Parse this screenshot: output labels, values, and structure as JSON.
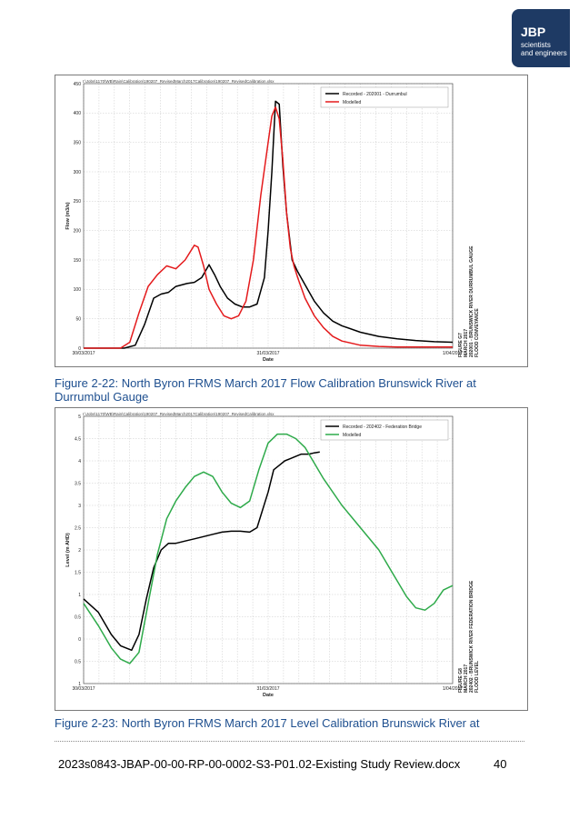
{
  "logo": {
    "brand": "JBP",
    "line1": "scientists",
    "line2": "and engineers",
    "color": "#1e3a64"
  },
  "figures": [
    {
      "caption": "Figure 2-22: North Byron FRMS March 2017 Flow Calibration Brunswick River at Durrumbul Gauge",
      "file_path": "I:\\Jobs\\1170\\WB\\Rain\\Calibration\\190207_RevisedMarch2017Calibration\\190207_RevisedCalibration.xlsx",
      "side_label": "FIGURE G7\nMARCH 2017\n202001 - BRUNSWICK RIVER DURRUMBUL GAUGE\nFLOOD CONVEYANCE",
      "chart_data": {
        "type": "line",
        "xlabel": "Date",
        "ylabel": "Flow (m3/s)",
        "x_ticks": [
          "30/03/2017",
          "31/03/2017",
          "1/04/2017"
        ],
        "ylim": [
          0,
          450
        ],
        "y_ticks": [
          0,
          50,
          100,
          150,
          200,
          250,
          300,
          350,
          400,
          450
        ],
        "grid": true,
        "legend_position": "top-right",
        "x_unit": "days from 30/03/2017",
        "series": [
          {
            "name": "Recorded - 202001 - Durrumbul",
            "color": "#000000",
            "x": [
              0,
              0.22,
              0.28,
              0.33,
              0.38,
              0.42,
              0.46,
              0.5,
              0.56,
              0.6,
              0.64,
              0.68,
              0.71,
              0.74,
              0.78,
              0.82,
              0.86,
              0.9,
              0.94,
              0.98,
              1.0,
              1.02,
              1.04,
              1.06,
              1.08,
              1.1,
              1.13,
              1.16,
              1.2,
              1.25,
              1.3,
              1.35,
              1.4,
              1.5,
              1.6,
              1.7,
              1.8,
              1.9,
              2.0
            ],
            "y": [
              0,
              0,
              5,
              40,
              85,
              92,
              95,
              105,
              110,
              112,
              120,
              142,
              125,
              105,
              85,
              75,
              70,
              70,
              75,
              120,
              200,
              300,
              420,
              415,
              310,
              230,
              150,
              130,
              108,
              80,
              60,
              46,
              38,
              27,
              20,
              16,
              13,
              11,
              10
            ]
          },
          {
            "name": "Modelled",
            "color": "#e41a1c",
            "x": [
              0,
              0.2,
              0.25,
              0.3,
              0.35,
              0.4,
              0.45,
              0.5,
              0.55,
              0.6,
              0.62,
              0.65,
              0.68,
              0.72,
              0.76,
              0.8,
              0.84,
              0.88,
              0.92,
              0.96,
              1.0,
              1.02,
              1.04,
              1.06,
              1.08,
              1.1,
              1.12,
              1.14,
              1.16,
              1.2,
              1.25,
              1.3,
              1.35,
              1.4,
              1.5,
              1.6,
              1.7,
              2.0
            ],
            "y": [
              0,
              0,
              10,
              60,
              105,
              125,
              140,
              135,
              150,
              175,
              172,
              140,
              100,
              75,
              55,
              50,
              55,
              80,
              150,
              260,
              350,
              395,
              410,
              390,
              320,
              230,
              170,
              140,
              120,
              85,
              55,
              35,
              20,
              12,
              5,
              3,
              2,
              2
            ]
          }
        ]
      }
    },
    {
      "caption": "Figure 2-23: North Byron FRMS March 2017 Level Calibration Brunswick River at",
      "file_path": "I:\\Jobs\\1170\\WB\\Rain\\Calibration\\190207_RevisedMarch2017Calibration\\190207_RevisedCalibration.xlsx",
      "side_label": "FIGURE G8\nMARCH 2017\n202402 - BRUNSWICK RIVER FEDERATION BRIDGE\nFLOOD LEVEL",
      "chart_data": {
        "type": "line",
        "xlabel": "Date",
        "ylabel": "Level (m AHD)",
        "x_ticks": [
          "30/03/2017",
          "31/03/2017",
          "1/04/2017"
        ],
        "ylim": [
          -1,
          5
        ],
        "y_ticks": [
          -1,
          -0.5,
          0,
          0.5,
          1,
          1.5,
          2,
          2.5,
          3,
          3.5,
          4,
          4.5,
          5
        ],
        "y_tick_labels": [
          "1",
          "0.5",
          "0",
          "0.5",
          "1",
          "1.5",
          "2",
          "2.5",
          "3",
          "3.5",
          "4",
          "4.5",
          "5"
        ],
        "grid": true,
        "legend_position": "top-right",
        "x_unit": "days from 30/03/2017",
        "series": [
          {
            "name": "Recorded - 202402 - Federation Bridge",
            "color": "#000000",
            "x": [
              0,
              0.08,
              0.15,
              0.2,
              0.26,
              0.3,
              0.34,
              0.38,
              0.42,
              0.46,
              0.5,
              0.55,
              0.6,
              0.65,
              0.7,
              0.75,
              0.8,
              0.85,
              0.9,
              0.94,
              0.97,
              1.0,
              1.03,
              1.06,
              1.09,
              1.12,
              1.15,
              1.18,
              1.22,
              1.25,
              1.28
            ],
            "y": [
              0.9,
              0.6,
              0.1,
              -0.15,
              -0.25,
              0.1,
              0.9,
              1.6,
              2.0,
              2.15,
              2.15,
              2.2,
              2.25,
              2.3,
              2.35,
              2.4,
              2.42,
              2.42,
              2.4,
              2.5,
              2.9,
              3.3,
              3.8,
              3.9,
              4.0,
              4.05,
              4.1,
              4.15,
              4.15,
              4.18,
              4.2
            ]
          },
          {
            "name": "Modelled",
            "color": "#2eaa4a",
            "x": [
              0,
              0.08,
              0.15,
              0.2,
              0.25,
              0.3,
              0.35,
              0.4,
              0.45,
              0.5,
              0.55,
              0.6,
              0.65,
              0.7,
              0.75,
              0.8,
              0.85,
              0.9,
              0.95,
              1.0,
              1.05,
              1.1,
              1.15,
              1.2,
              1.3,
              1.4,
              1.5,
              1.6,
              1.7,
              1.75,
              1.8,
              1.85,
              1.9,
              1.95,
              2.0
            ],
            "y": [
              0.8,
              0.3,
              -0.2,
              -0.45,
              -0.55,
              -0.3,
              0.8,
              1.9,
              2.7,
              3.1,
              3.4,
              3.65,
              3.75,
              3.65,
              3.3,
              3.05,
              2.95,
              3.1,
              3.8,
              4.4,
              4.6,
              4.6,
              4.5,
              4.3,
              3.6,
              3.0,
              2.5,
              2.0,
              1.3,
              0.95,
              0.7,
              0.65,
              0.8,
              1.1,
              1.2
            ]
          }
        ]
      }
    }
  ],
  "caption_overflow": "Durrumbul Gauge",
  "footer": {
    "doc": "2023s0843-JBAP-00-00-RP-00-0002-S3-P01.02-Existing Study Review.docx",
    "page": "40"
  }
}
